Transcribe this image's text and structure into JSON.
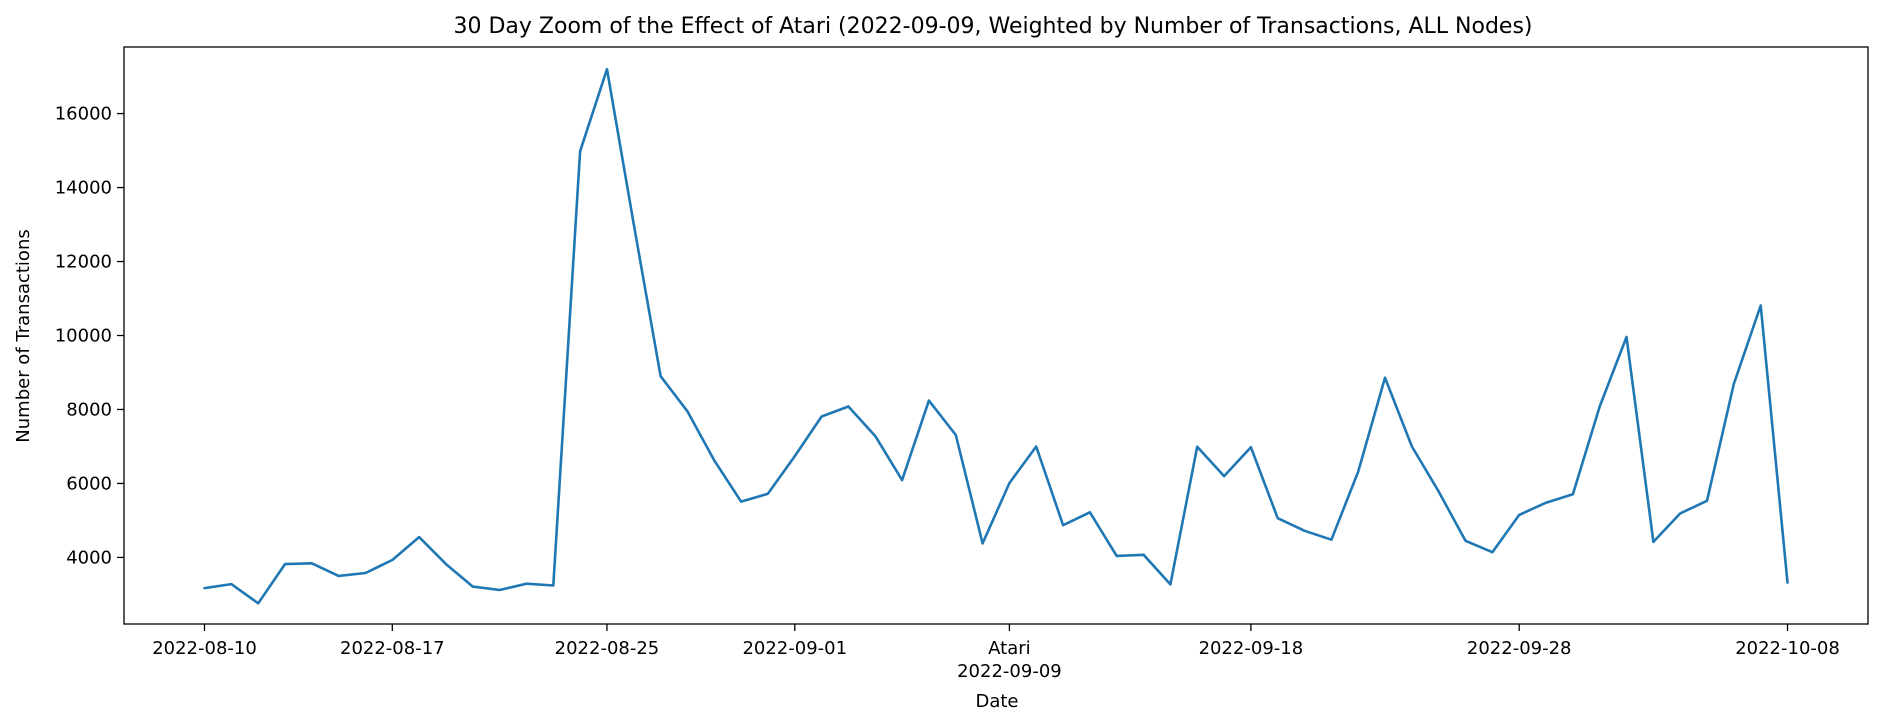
{
  "chart_data": {
    "type": "line",
    "title": "30 Day Zoom of the Effect of Atari (2022-09-09, Weighted by Number of Transactions, ALL Nodes)",
    "xlabel": "Date",
    "ylabel": "Number of Transactions",
    "x_tick_labels": [
      "2022-08-10",
      "2022-08-17",
      "2022-08-25",
      "2022-09-01",
      "Atari",
      "2022-09-18",
      "2022-09-28",
      "2022-10-08"
    ],
    "x_tick_dates": [
      "2022-08-10",
      "2022-08-17",
      "2022-08-25",
      "2022-09-01",
      "2022-09-09",
      "2022-09-18",
      "2022-09-28",
      "2022-10-08"
    ],
    "event_label": "Atari",
    "event_date_label": "2022-09-09",
    "y_ticks": [
      4000,
      6000,
      8000,
      10000,
      12000,
      14000,
      16000
    ],
    "xlim": [
      "2022-08-07",
      "2022-10-11"
    ],
    "ylim": [
      2200,
      17800
    ],
    "grid": false,
    "legend": "none",
    "line_color": "#1f77b4",
    "series": [
      {
        "x": [
          "2022-08-10",
          "2022-08-11",
          "2022-08-12",
          "2022-08-13",
          "2022-08-14",
          "2022-08-15",
          "2022-08-16",
          "2022-08-17",
          "2022-08-18",
          "2022-08-19",
          "2022-08-20",
          "2022-08-21",
          "2022-08-22",
          "2022-08-23",
          "2022-08-24",
          "2022-08-25",
          "2022-08-26",
          "2022-08-27",
          "2022-08-28",
          "2022-08-29",
          "2022-08-30",
          "2022-08-31",
          "2022-09-01",
          "2022-09-02",
          "2022-09-03",
          "2022-09-04",
          "2022-09-05",
          "2022-09-06",
          "2022-09-07",
          "2022-09-08",
          "2022-09-09",
          "2022-09-10",
          "2022-09-11",
          "2022-09-12",
          "2022-09-13",
          "2022-09-14",
          "2022-09-15",
          "2022-09-16",
          "2022-09-17",
          "2022-09-18",
          "2022-09-19",
          "2022-09-20",
          "2022-09-21",
          "2022-09-22",
          "2022-09-23",
          "2022-09-24",
          "2022-09-25",
          "2022-09-26",
          "2022-09-27",
          "2022-09-28",
          "2022-09-29",
          "2022-09-30",
          "2022-10-01",
          "2022-10-02",
          "2022-10-03",
          "2022-10-04",
          "2022-10-05",
          "2022-10-06",
          "2022-10-07",
          "2022-10-08"
        ],
        "values": [
          3170,
          3280,
          2760,
          3820,
          3840,
          3500,
          3580,
          3930,
          4550,
          3820,
          3210,
          3120,
          3290,
          3240,
          14980,
          17200,
          13000,
          8900,
          7950,
          6620,
          5510,
          5720,
          6740,
          7810,
          8080,
          7280,
          6090,
          8240,
          7310,
          4380,
          6010,
          7000,
          4870,
          5220,
          4040,
          4070,
          3270,
          6990,
          6200,
          6980,
          5060,
          4720,
          4480,
          6320,
          8860,
          7000,
          5780,
          4450,
          4140,
          5150,
          5480,
          5710,
          8080,
          9960,
          4420,
          5190,
          5530,
          8690,
          10810,
          3320
        ]
      }
    ]
  }
}
